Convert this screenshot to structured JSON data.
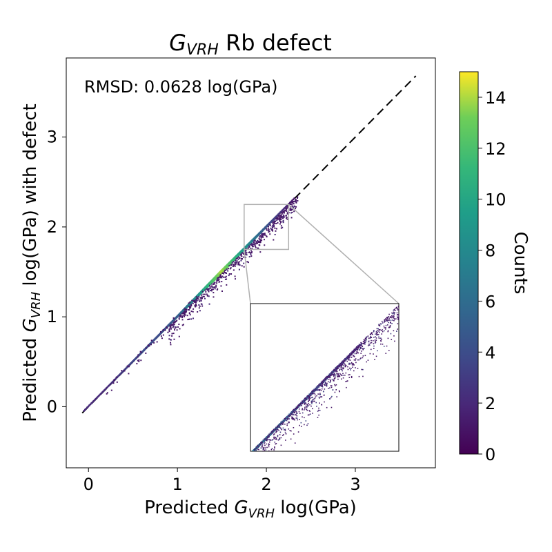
{
  "chart_data": {
    "type": "heatmap",
    "title": "$G_{VRH}$ Rb defect",
    "title_main": "G",
    "title_sub": "VRH",
    "title_rest": " Rb defect",
    "xlabel": "Predicted $G_{VRH}$ log(GPa)",
    "xlabel_pre": "Predicted ",
    "xlabel_main": "G",
    "xlabel_sub": "VRH",
    "xlabel_post": " log(GPa)",
    "ylabel": "Predicted $G_{VRH}$ log(GPa) with defect",
    "ylabel_pre": "Predicted ",
    "ylabel_main": "G",
    "ylabel_sub": "VRH",
    "ylabel_post": " log(GPa) with defect",
    "annotation": "RMSD: 0.0628 log(GPa)",
    "xlim": [
      -0.25,
      3.9
    ],
    "ylim": [
      -0.68,
      3.88
    ],
    "xticks": [
      "0",
      "1",
      "2",
      "3"
    ],
    "yticks": [
      "0",
      "1",
      "2",
      "3"
    ],
    "reference_line": {
      "style": "dashed",
      "from": [
        -0.07,
        -0.07
      ],
      "to": [
        3.68,
        3.68
      ]
    },
    "colorbar": {
      "label": "Counts",
      "range": [
        0,
        15
      ],
      "ticks": [
        "0",
        "2",
        "4",
        "6",
        "8",
        "10",
        "12",
        "14"
      ],
      "colormap": "viridis"
    },
    "diagonal_density": [
      {
        "x": 0.0,
        "y": 0.0,
        "count": 2
      },
      {
        "x": 0.2,
        "y": 0.2,
        "count": 2
      },
      {
        "x": 0.4,
        "y": 0.4,
        "count": 3
      },
      {
        "x": 0.6,
        "y": 0.6,
        "count": 4
      },
      {
        "x": 0.8,
        "y": 0.8,
        "count": 4
      },
      {
        "x": 1.0,
        "y": 1.0,
        "count": 5
      },
      {
        "x": 1.2,
        "y": 1.2,
        "count": 8
      },
      {
        "x": 1.4,
        "y": 1.4,
        "count": 12
      },
      {
        "x": 1.5,
        "y": 1.5,
        "count": 14
      },
      {
        "x": 1.7,
        "y": 1.7,
        "count": 10
      },
      {
        "x": 1.9,
        "y": 1.9,
        "count": 6
      },
      {
        "x": 2.1,
        "y": 2.1,
        "count": 3
      },
      {
        "x": 2.3,
        "y": 2.3,
        "count": 1
      }
    ],
    "inset": {
      "zoom_region": {
        "x": [
          1.75,
          2.25
        ],
        "y": [
          1.75,
          2.25
        ]
      }
    }
  },
  "colors": {
    "viridis_low": "#440154",
    "viridis_mid": "#21918c",
    "viridis_high": "#fde725",
    "reference_line": "#000000",
    "zoom_box": "#b0b0b0"
  }
}
